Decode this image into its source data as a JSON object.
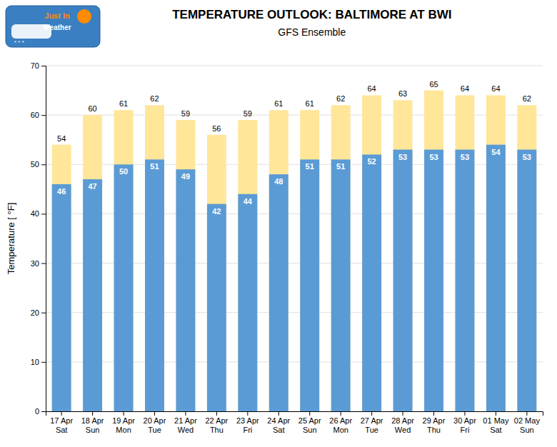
{
  "chart_data": {
    "type": "bar",
    "title": "TEMPERATURE OUTLOOK: BALTIMORE AT BWI",
    "subtitle": "GFS Ensemble",
    "y_label": "Temperature [ °F]",
    "annotations": [
      "Just In",
      "Weather",
      "* * *"
    ],
    "categories": [
      "17 Apr\nSat",
      "18 Apr\nSun",
      "19 Apr\nMon",
      "20 Apr\nTue",
      "21 Apr\nWed",
      "22 Apr\nThu",
      "23 Apr\nFri",
      "24 Apr\nSat",
      "25 Apr\nSun",
      "26 Apr\nMon",
      "27 Apr\nTue",
      "28 Apr\nWed",
      "29 Apr\nThu",
      "30 Apr\nFri",
      "01 May\nSat",
      "02 May\nSun"
    ],
    "series": [
      {
        "color": "#FFE699",
        "values": [
          54,
          60,
          61,
          62,
          59,
          56,
          59,
          61,
          61,
          62,
          64,
          63,
          65,
          64,
          64,
          62
        ]
      },
      {
        "color": "#5B9BD5",
        "values": [
          46,
          47,
          50,
          51,
          49,
          42,
          44,
          48,
          51,
          51,
          52,
          53,
          53,
          53,
          54,
          53
        ]
      }
    ],
    "ylim": [
      0,
      70
    ],
    "yticks": [
      0,
      10,
      20,
      30,
      40,
      50,
      60,
      70
    ],
    "grid": true,
    "data_labels": true
  }
}
